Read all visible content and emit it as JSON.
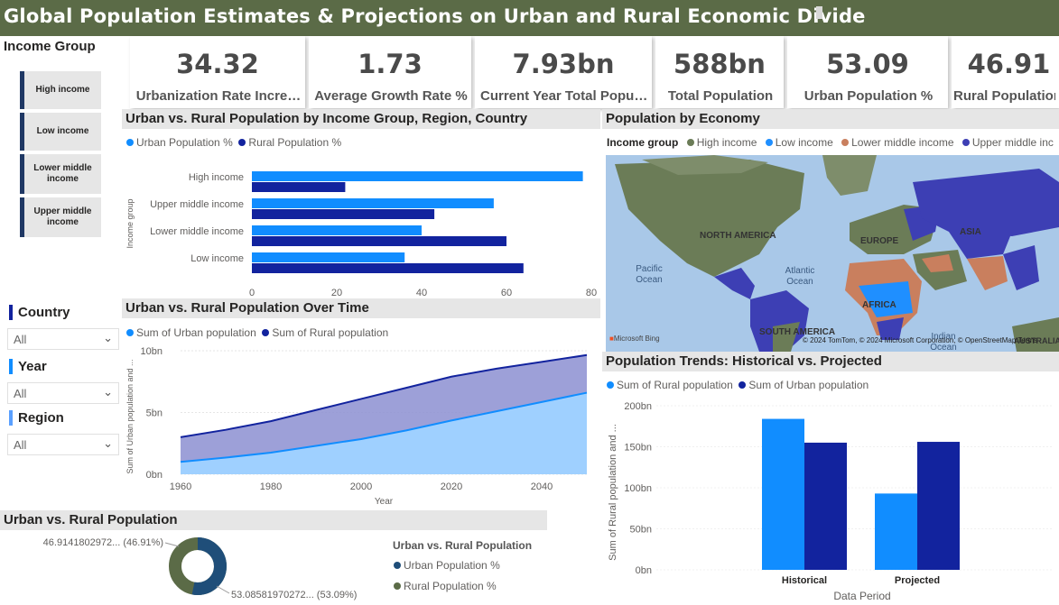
{
  "header": {
    "title": "Global Population Estimates & Projections on Urban and Rural Economic Divide"
  },
  "kpis": [
    {
      "value": "34.32",
      "label": "Urbanization Rate Incre…"
    },
    {
      "value": "1.73",
      "label": "Average Growth Rate %"
    },
    {
      "value": "7.93bn",
      "label": "Current Year Total Popul…"
    },
    {
      "value": "588bn",
      "label": "Total Population"
    },
    {
      "value": "53.09",
      "label": "Urban Population %"
    },
    {
      "value": "46.91",
      "label": "Rural Population"
    }
  ],
  "income_slicer": {
    "title": "Income Group",
    "items": [
      "High income",
      "Low income",
      "Lower middle income",
      "Upper middle income"
    ]
  },
  "filters": [
    {
      "title": "Country",
      "value": "All"
    },
    {
      "title": "Year",
      "value": "All"
    },
    {
      "title": "Region",
      "value": "All"
    }
  ],
  "colors": {
    "urban_light": "#118dff",
    "rural_dark": "#12239e",
    "header": "#5b6b47",
    "high": "#6b7c57",
    "low": "#1f8fff",
    "lower_middle": "#c97f5e",
    "upper_middle": "#3d3fb4"
  },
  "bar_chart": {
    "title": "Urban vs. Rural Population by Income Group, Region, Country",
    "legend": [
      "Urban Population %",
      "Rural Population %"
    ],
    "axis_title": "Income group",
    "ticks": [
      "0",
      "20",
      "40",
      "60",
      "80"
    ]
  },
  "map": {
    "title": "Population by Economy",
    "legend_title": "Income group",
    "legend": [
      "High income",
      "Low income",
      "Lower middle income",
      "Upper middle inc"
    ],
    "labels": {
      "north_america": "NORTH AMERICA",
      "europe": "EUROPE",
      "asia": "ASIA",
      "africa": "AFRICA",
      "south_america": "SOUTH AMERICA",
      "pacific": "Pacific Ocean",
      "atlantic": "Atlantic Ocean",
      "indian": "Indian Ocean",
      "australia": "AUSTRALIA"
    },
    "bing": "Microsoft Bing",
    "copyright": "© 2024 TomTom, © 2024 Microsoft Corporation, © OpenStreetMap Terms"
  },
  "area_chart": {
    "title": "Urban vs. Rural Population Over Time",
    "legend": [
      "Sum of Urban population",
      "Sum of Rural population"
    ],
    "ylabel": "Sum of Urban population and ...",
    "xlabel": "Year",
    "yticks": [
      "0bn",
      "5bn",
      "10bn"
    ],
    "xticks": [
      "1960",
      "1980",
      "2000",
      "2020",
      "2040"
    ]
  },
  "donut": {
    "title": "Urban vs. Rural Population",
    "legend_title": "Urban vs. Rural Population",
    "legend": [
      "Urban Population %",
      "Rural Population %"
    ],
    "label_rural": "46.9141802972... (46.91%)",
    "label_urban": "53.08581970272... (53.09%)"
  },
  "trends": {
    "title": "Population Trends: Historical vs. Projected",
    "legend": [
      "Sum of Rural population",
      "Sum of Urban population"
    ],
    "ylabel": "Sum of Rural population and ...",
    "xlabel": "Data Period",
    "yticks": [
      "0bn",
      "50bn",
      "100bn",
      "150bn",
      "200bn"
    ],
    "categories": [
      "Historical",
      "Projected"
    ]
  },
  "chart_data": [
    {
      "type": "bar",
      "orientation": "horizontal",
      "categories": [
        "High income",
        "Upper middle income",
        "Lower middle income",
        "Low income"
      ],
      "series": [
        {
          "name": "Urban Population %",
          "values": [
            78,
            57,
            40,
            36
          ]
        },
        {
          "name": "Rural Population %",
          "values": [
            22,
            43,
            60,
            64
          ]
        }
      ],
      "xlim": [
        0,
        80
      ],
      "ylabel": "Income group"
    },
    {
      "type": "area",
      "x": [
        1960,
        1970,
        1980,
        1990,
        2000,
        2010,
        2020,
        2030,
        2040,
        2050
      ],
      "series": [
        {
          "name": "Sum of Urban population",
          "values": [
            1.0,
            1.35,
            1.75,
            2.3,
            2.85,
            3.55,
            4.35,
            5.1,
            5.85,
            6.6
          ]
        },
        {
          "name": "Sum of Rural population",
          "values": [
            2.0,
            2.25,
            2.55,
            2.9,
            3.25,
            3.45,
            3.55,
            3.45,
            3.25,
            3.05
          ]
        }
      ],
      "stacked": true,
      "xlabel": "Year",
      "ylabel": "Sum of Urban population and ...",
      "ylim": [
        0,
        10
      ]
    },
    {
      "type": "pie",
      "donut": true,
      "categories": [
        "Urban Population %",
        "Rural Population %"
      ],
      "values": [
        53.09,
        46.91
      ]
    },
    {
      "type": "bar",
      "categories": [
        "Historical",
        "Projected"
      ],
      "series": [
        {
          "name": "Sum of Rural population",
          "values": [
            184,
            93
          ]
        },
        {
          "name": "Sum of Urban population",
          "values": [
            155,
            156
          ]
        }
      ],
      "xlabel": "Data Period",
      "ylabel": "Sum of Rural population and ...",
      "ylim": [
        0,
        200
      ]
    }
  ]
}
